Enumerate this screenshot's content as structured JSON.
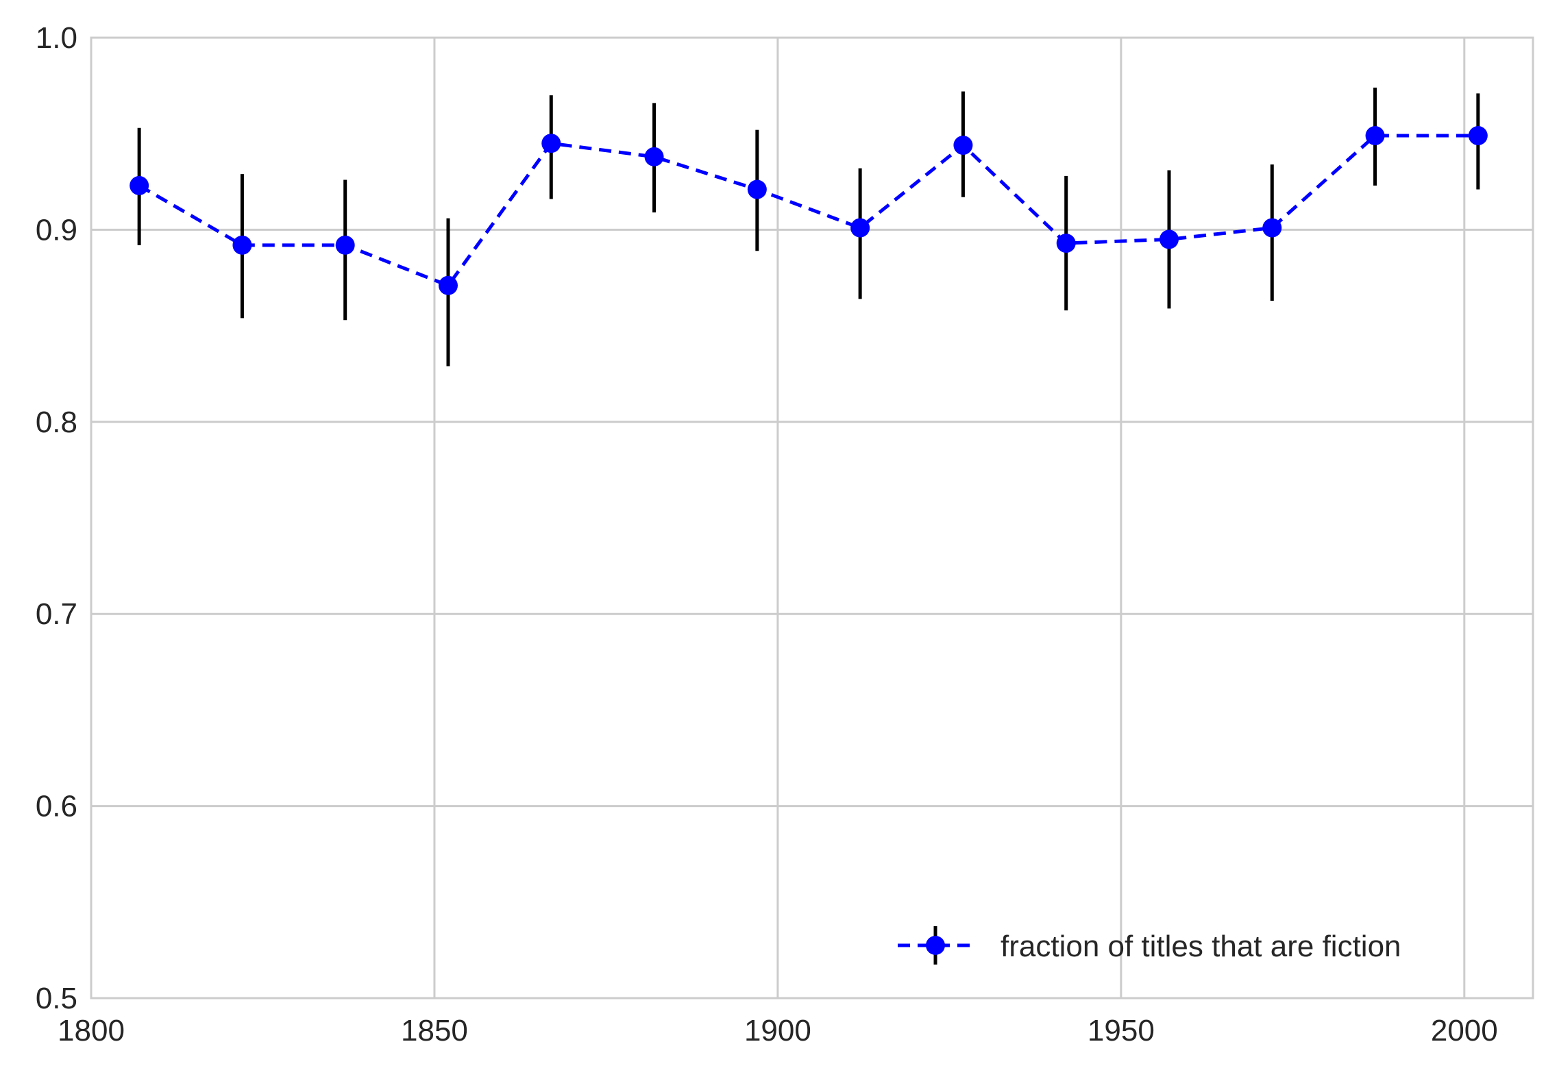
{
  "chart_data": {
    "type": "line",
    "title": "",
    "xlabel": "",
    "ylabel": "",
    "xlim": [
      1800,
      2010
    ],
    "ylim": [
      0.5,
      1.0
    ],
    "xticks": [
      "1800",
      "1850",
      "1900",
      "1950",
      "2000"
    ],
    "yticks": [
      "0.5",
      "0.6",
      "0.7",
      "0.8",
      "0.9",
      "1.0"
    ],
    "grid": true,
    "legend_position": "lower-right",
    "series": [
      {
        "name": "fraction of titles that are fiction",
        "color": "#0000ff",
        "line_style": "dashed",
        "marker": "circle",
        "errorbar_color": "#000000",
        "x": [
          1807,
          1822,
          1837,
          1852,
          1867,
          1882,
          1897,
          1912,
          1927,
          1942,
          1957,
          1972,
          1987,
          2002
        ],
        "y": [
          0.923,
          0.892,
          0.892,
          0.871,
          0.945,
          0.938,
          0.921,
          0.901,
          0.944,
          0.893,
          0.895,
          0.901,
          0.949,
          0.949
        ],
        "y_err_low": [
          0.892,
          0.854,
          0.853,
          0.829,
          0.916,
          0.909,
          0.889,
          0.864,
          0.917,
          0.858,
          0.859,
          0.863,
          0.923,
          0.921
        ],
        "y_err_high": [
          0.953,
          0.929,
          0.926,
          0.906,
          0.97,
          0.966,
          0.952,
          0.932,
          0.972,
          0.928,
          0.931,
          0.934,
          0.974,
          0.971
        ]
      }
    ]
  }
}
